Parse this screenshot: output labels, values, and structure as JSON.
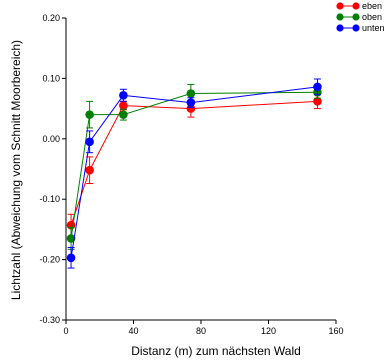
{
  "chart_data": {
    "type": "line",
    "xlabel": "Distanz (m) zum nächsten Wald",
    "ylabel": "Lichtzahl (Abweichung vom Schnitt Moorbereich)",
    "xlim": [
      0,
      160
    ],
    "ylim": [
      -0.3,
      0.2
    ],
    "x_ticks": [
      0,
      40,
      80,
      120,
      160
    ],
    "x_tick_labels": [
      "0",
      "40",
      "80",
      "120",
      "160"
    ],
    "y_ticks": [
      0.2,
      0.1,
      0.0,
      -0.1,
      -0.2,
      -0.3
    ],
    "y_tick_labels": [
      "0.20",
      "0.10",
      "0.00",
      "-0.10",
      "-0.20",
      "-0.30"
    ],
    "grid": false,
    "legend_position": "top-right",
    "series": [
      {
        "name": "eben",
        "color": "#ff0000",
        "points": [
          {
            "x": 3,
            "y": -0.143,
            "err": 0.018
          },
          {
            "x": 14,
            "y": -0.052,
            "err": 0.022
          },
          {
            "x": 34,
            "y": 0.055,
            "err": 0.007
          },
          {
            "x": 74,
            "y": 0.05,
            "err": 0.014
          },
          {
            "x": 149,
            "y": 0.062,
            "err": 0.012
          }
        ]
      },
      {
        "name": "oben",
        "color": "#008000",
        "points": [
          {
            "x": 3,
            "y": -0.165,
            "err": 0.018
          },
          {
            "x": 14,
            "y": 0.04,
            "err": 0.022
          },
          {
            "x": 34,
            "y": 0.04,
            "err": 0.009
          },
          {
            "x": 74,
            "y": 0.075,
            "err": 0.015
          },
          {
            "x": 149,
            "y": 0.077,
            "err": 0.01
          }
        ]
      },
      {
        "name": "unten",
        "color": "#0000ff",
        "points": [
          {
            "x": 3,
            "y": -0.197,
            "err": 0.017
          },
          {
            "x": 14,
            "y": -0.005,
            "err": 0.018
          },
          {
            "x": 34,
            "y": 0.072,
            "err": 0.01
          },
          {
            "x": 74,
            "y": 0.06,
            "err": 0.008
          },
          {
            "x": 149,
            "y": 0.086,
            "err": 0.013
          }
        ]
      }
    ]
  }
}
